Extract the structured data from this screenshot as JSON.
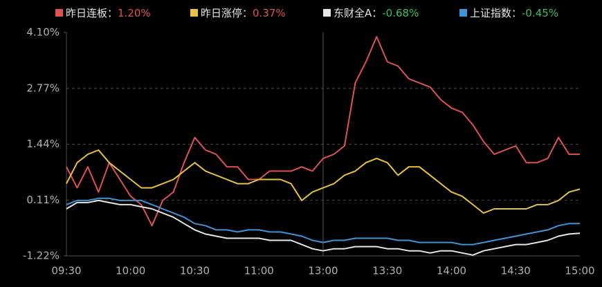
{
  "chart_data": {
    "type": "line",
    "categories": [
      "09:30",
      null,
      null,
      null,
      null,
      null,
      "10:00",
      null,
      null,
      null,
      null,
      null,
      "10:30",
      null,
      null,
      null,
      null,
      null,
      "11:00",
      null,
      null,
      null,
      null,
      null,
      "13:00",
      null,
      null,
      null,
      null,
      null,
      "13:30",
      null,
      null,
      null,
      null,
      null,
      "14:00",
      null,
      null,
      null,
      null,
      null,
      "14:30",
      null,
      null,
      null,
      null,
      null,
      "15:00"
    ],
    "ylim": [
      -1.22,
      4.1
    ],
    "yticks": [
      {
        "value": -1.22,
        "label": "-1.22%"
      },
      {
        "value": 0.11,
        "label": "0.11%"
      },
      {
        "value": 1.44,
        "label": "1.44%"
      },
      {
        "value": 2.77,
        "label": "2.77%"
      },
      {
        "value": 4.1,
        "label": "4.10%"
      }
    ],
    "grid": true,
    "series": [
      {
        "name": "昨日连板：",
        "color": "#e05252",
        "legend_value": {
          "value": 1.2,
          "label": "1.20%"
        },
        "values": [
          0.9,
          0.4,
          0.9,
          0.3,
          1.0,
          0.6,
          0.2,
          0.0,
          -0.5,
          0.1,
          0.3,
          1.0,
          1.6,
          1.3,
          1.2,
          0.9,
          0.9,
          0.6,
          0.6,
          0.8,
          0.8,
          0.8,
          0.9,
          0.8,
          1.1,
          1.2,
          1.4,
          2.9,
          3.4,
          4.0,
          3.4,
          3.3,
          3.0,
          2.9,
          2.8,
          2.5,
          2.3,
          2.2,
          1.9,
          1.5,
          1.2,
          1.3,
          1.4,
          1.0,
          1.0,
          1.1,
          1.6,
          1.2,
          1.2
        ]
      },
      {
        "name": "昨日涨停：",
        "color": "#e8c240",
        "legend_value": {
          "value": 0.37,
          "label": "0.37%"
        },
        "values": [
          0.5,
          1.0,
          1.2,
          1.3,
          1.0,
          0.8,
          0.6,
          0.4,
          0.4,
          0.5,
          0.6,
          0.8,
          1.0,
          0.8,
          0.7,
          0.6,
          0.5,
          0.5,
          0.6,
          0.6,
          0.6,
          0.5,
          0.1,
          0.3,
          0.4,
          0.5,
          0.7,
          0.8,
          1.0,
          1.1,
          1.0,
          0.7,
          0.9,
          0.9,
          0.7,
          0.5,
          0.3,
          0.2,
          0.0,
          -0.2,
          -0.1,
          -0.1,
          -0.1,
          -0.1,
          0.0,
          0.0,
          0.1,
          0.3,
          0.37
        ]
      },
      {
        "name": "东财全A：",
        "color": "#e6e6e6",
        "legend_value": {
          "value": -0.68,
          "label": "-0.68%"
        },
        "values": [
          -0.1,
          0.05,
          0.05,
          0.1,
          0.05,
          0.0,
          0.0,
          -0.05,
          -0.1,
          -0.2,
          -0.3,
          -0.45,
          -0.6,
          -0.7,
          -0.75,
          -0.8,
          -0.8,
          -0.8,
          -0.8,
          -0.85,
          -0.85,
          -0.85,
          -0.95,
          -1.05,
          -1.1,
          -1.05,
          -1.05,
          -1.0,
          -1.0,
          -1.0,
          -1.05,
          -1.05,
          -1.1,
          -1.1,
          -1.15,
          -1.1,
          -1.1,
          -1.15,
          -1.2,
          -1.1,
          -1.05,
          -1.0,
          -0.95,
          -0.95,
          -0.9,
          -0.85,
          -0.75,
          -0.7,
          -0.68
        ]
      },
      {
        "name": "上证指数：",
        "color": "#3f94d8",
        "legend_value": {
          "value": -0.45,
          "label": "-0.45%"
        },
        "values": [
          0.0,
          0.1,
          0.1,
          0.15,
          0.15,
          0.1,
          0.1,
          0.1,
          0.0,
          -0.1,
          -0.2,
          -0.3,
          -0.45,
          -0.5,
          -0.6,
          -0.6,
          -0.65,
          -0.6,
          -0.6,
          -0.65,
          -0.65,
          -0.7,
          -0.75,
          -0.85,
          -0.9,
          -0.85,
          -0.85,
          -0.8,
          -0.8,
          -0.8,
          -0.8,
          -0.85,
          -0.85,
          -0.9,
          -0.9,
          -0.9,
          -0.9,
          -0.95,
          -0.95,
          -0.9,
          -0.85,
          -0.8,
          -0.75,
          -0.7,
          -0.65,
          -0.6,
          -0.5,
          -0.45,
          -0.45
        ]
      }
    ]
  }
}
